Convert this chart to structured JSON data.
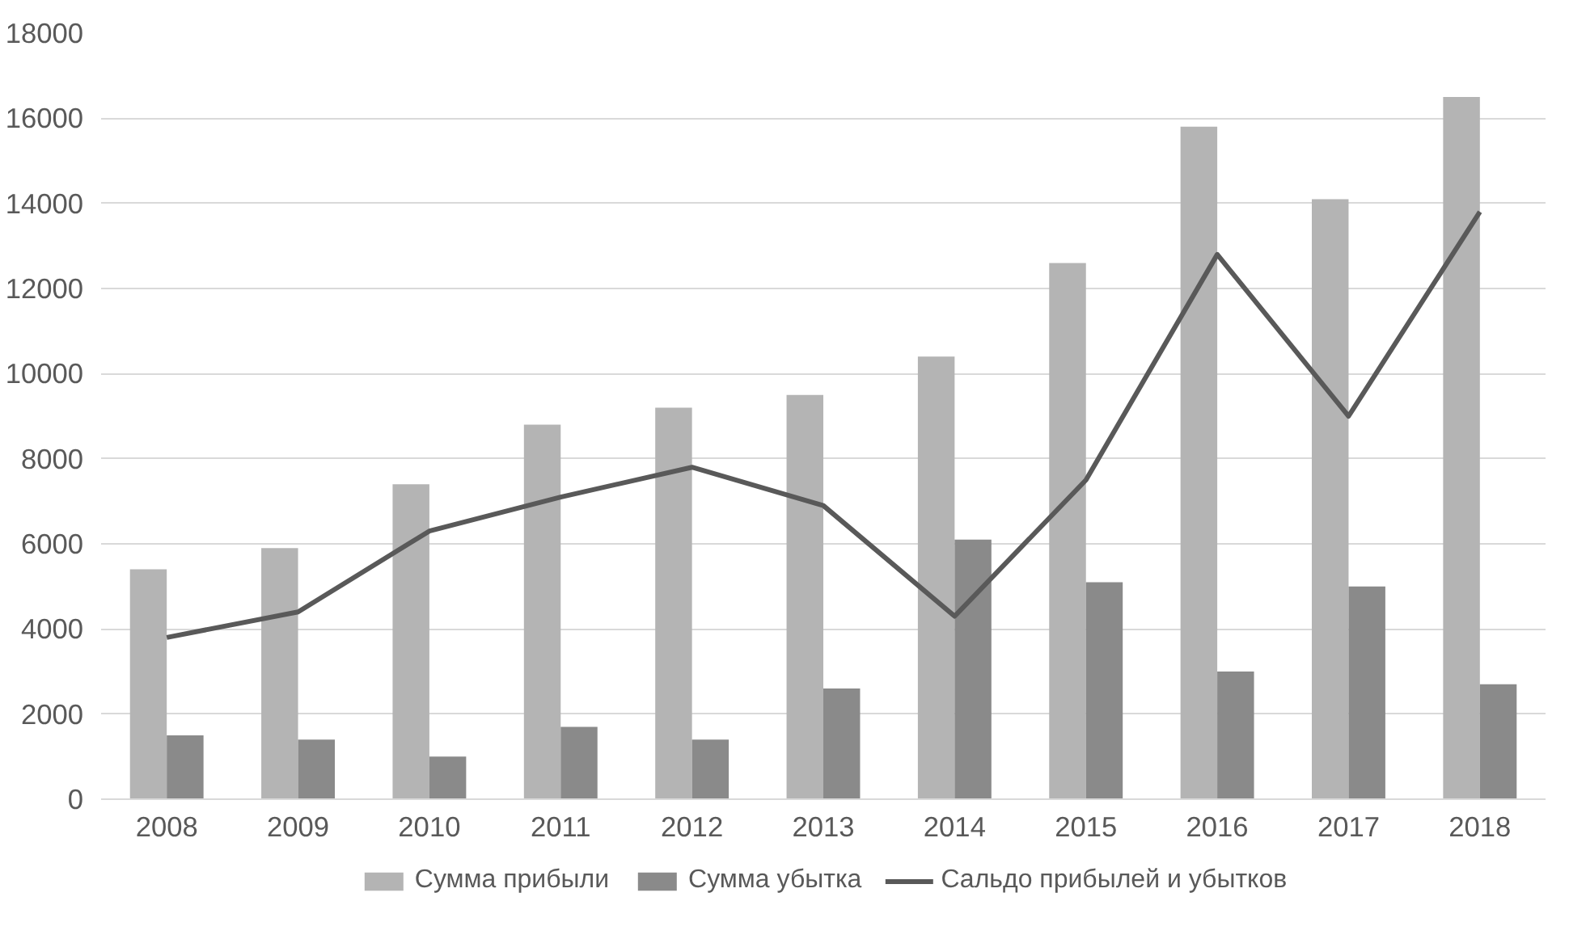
{
  "chart_data": {
    "type": "bar",
    "categories": [
      "2008",
      "2009",
      "2010",
      "2011",
      "2012",
      "2013",
      "2014",
      "2015",
      "2016",
      "2017",
      "2018"
    ],
    "series": [
      {
        "name": "Сумма прибыли",
        "color": "#b4b4b4",
        "values": [
          5400,
          5900,
          7400,
          8800,
          9200,
          9500,
          10400,
          12600,
          15800,
          14100,
          16500
        ]
      },
      {
        "name": "Сумма убытка",
        "color": "#8a8a8a",
        "values": [
          1500,
          1400,
          1000,
          1700,
          1400,
          2600,
          6100,
          5100,
          3000,
          5000,
          2700
        ]
      },
      {
        "name": "Сальдо прибылей и убытков",
        "type": "line",
        "color": "#595959",
        "values": [
          3800,
          4400,
          6300,
          7100,
          7800,
          6900,
          4300,
          7500,
          12800,
          9000,
          13800
        ]
      }
    ],
    "ylim": [
      0,
      18000
    ],
    "yticks": [
      0,
      2000,
      4000,
      6000,
      8000,
      10000,
      12000,
      14000,
      16000,
      18000
    ],
    "grid": "y",
    "legend": "bottom",
    "marker": "none",
    "line_style": "solid"
  }
}
